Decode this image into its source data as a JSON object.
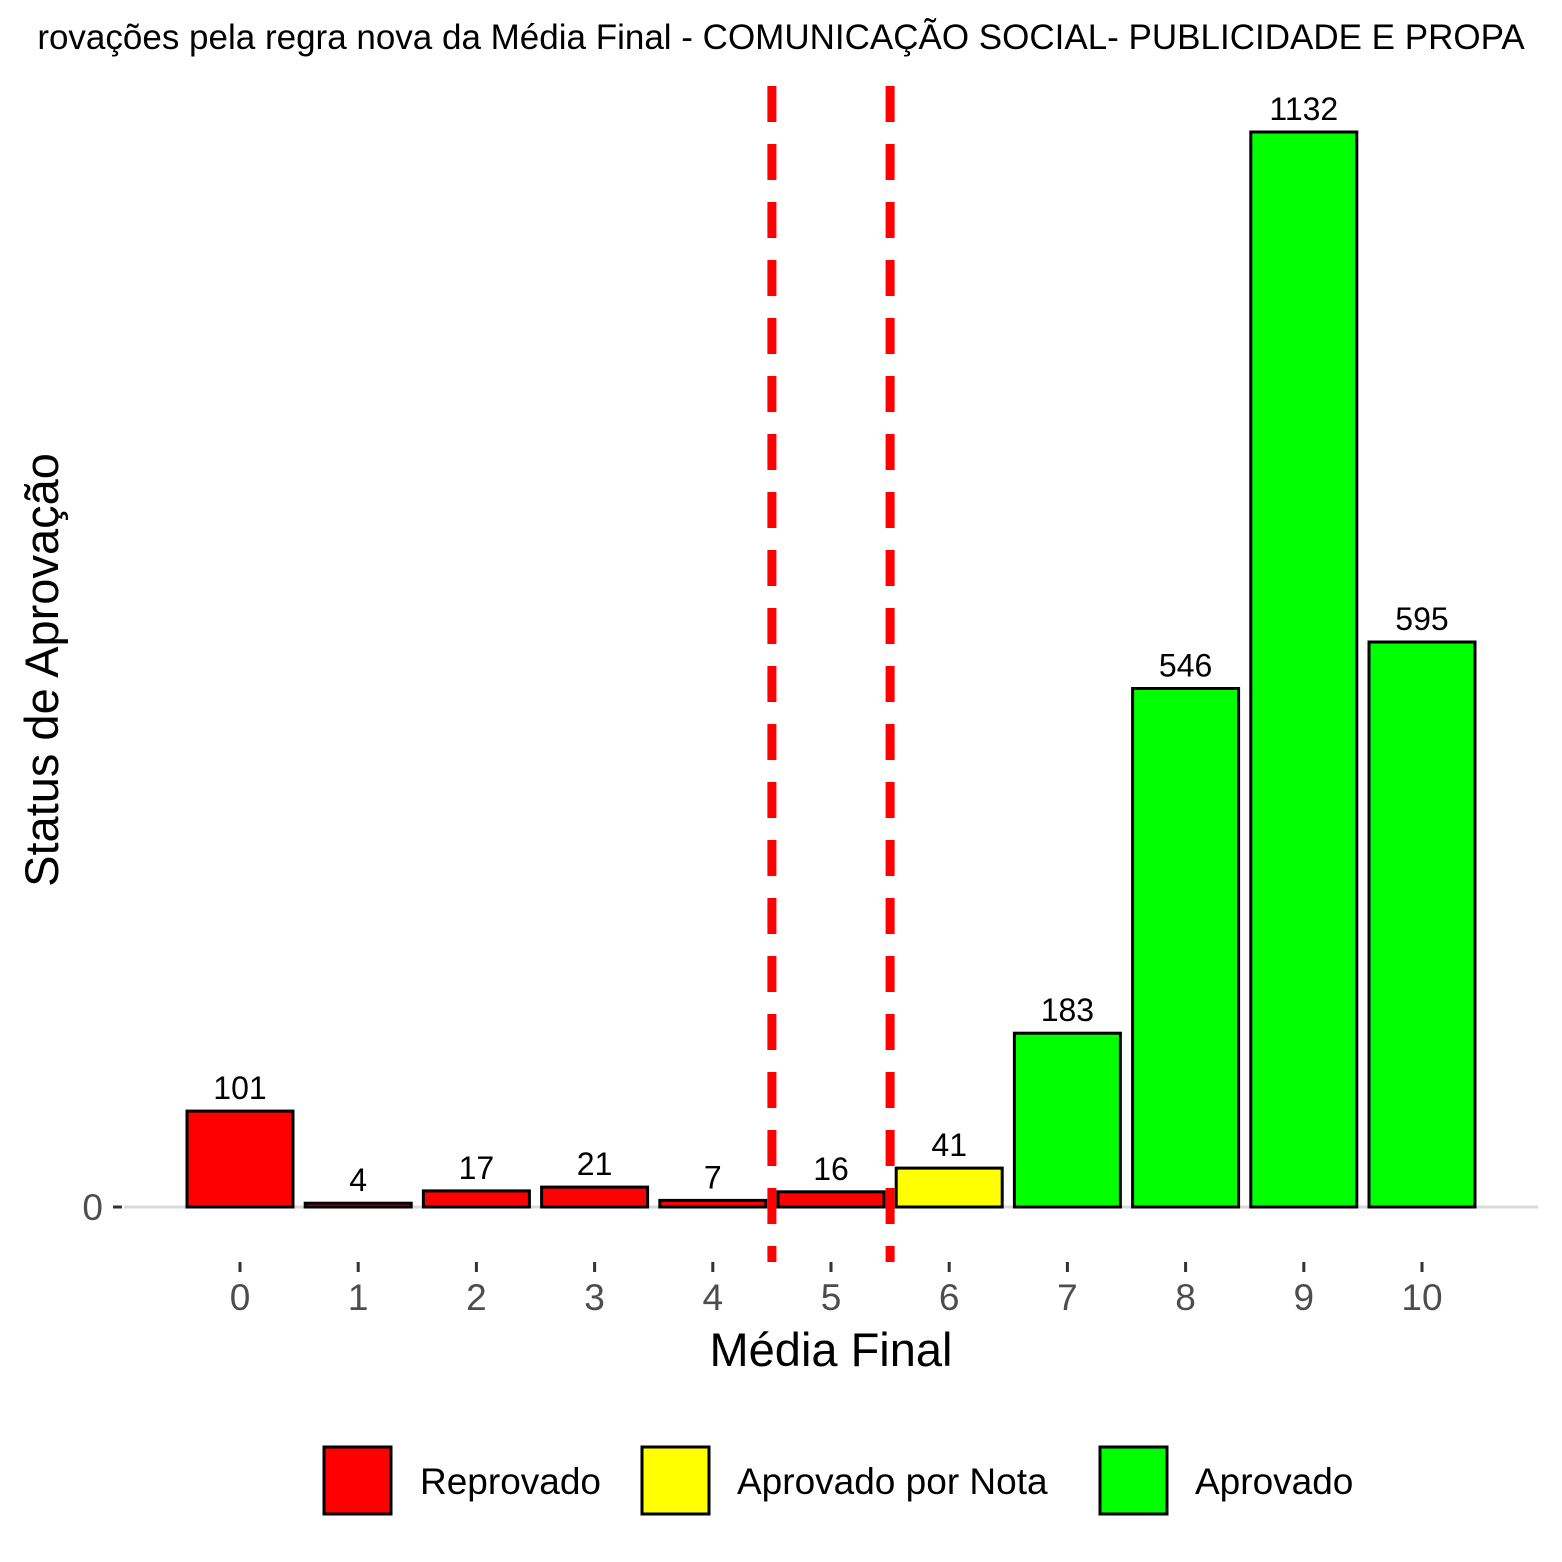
{
  "chart_data": {
    "type": "bar",
    "title": "rovações pela regra nova da Média Final - COMUNICAÇÃO SOCIAL- PUBLICIDADE E PROPA",
    "xlabel": "Média Final",
    "ylabel": "Status de Aprovação",
    "categories": [
      "0",
      "1",
      "2",
      "3",
      "4",
      "5",
      "6",
      "7",
      "8",
      "9",
      "10"
    ],
    "values": [
      101,
      4,
      17,
      21,
      7,
      16,
      41,
      183,
      546,
      1132,
      595
    ],
    "statuses": [
      "Reprovado",
      "Reprovado",
      "Reprovado",
      "Reprovado",
      "Reprovado",
      "Reprovado",
      "Aprovado por Nota",
      "Aprovado",
      "Aprovado",
      "Aprovado",
      "Aprovado"
    ],
    "y_ticks": [
      "0"
    ],
    "ylim": [
      0,
      1132
    ],
    "reference_lines_x": [
      4.5,
      5.5
    ],
    "reference_line_color": "#ff0000",
    "reference_line_style": "dashed",
    "legend": {
      "placement": "bottom",
      "entries": [
        {
          "label": "Reprovado",
          "color": "#ff0000"
        },
        {
          "label": "Aprovado por Nota",
          "color": "#ffff00"
        },
        {
          "label": "Aprovado",
          "color": "#00ff00"
        }
      ]
    },
    "grid": false
  }
}
